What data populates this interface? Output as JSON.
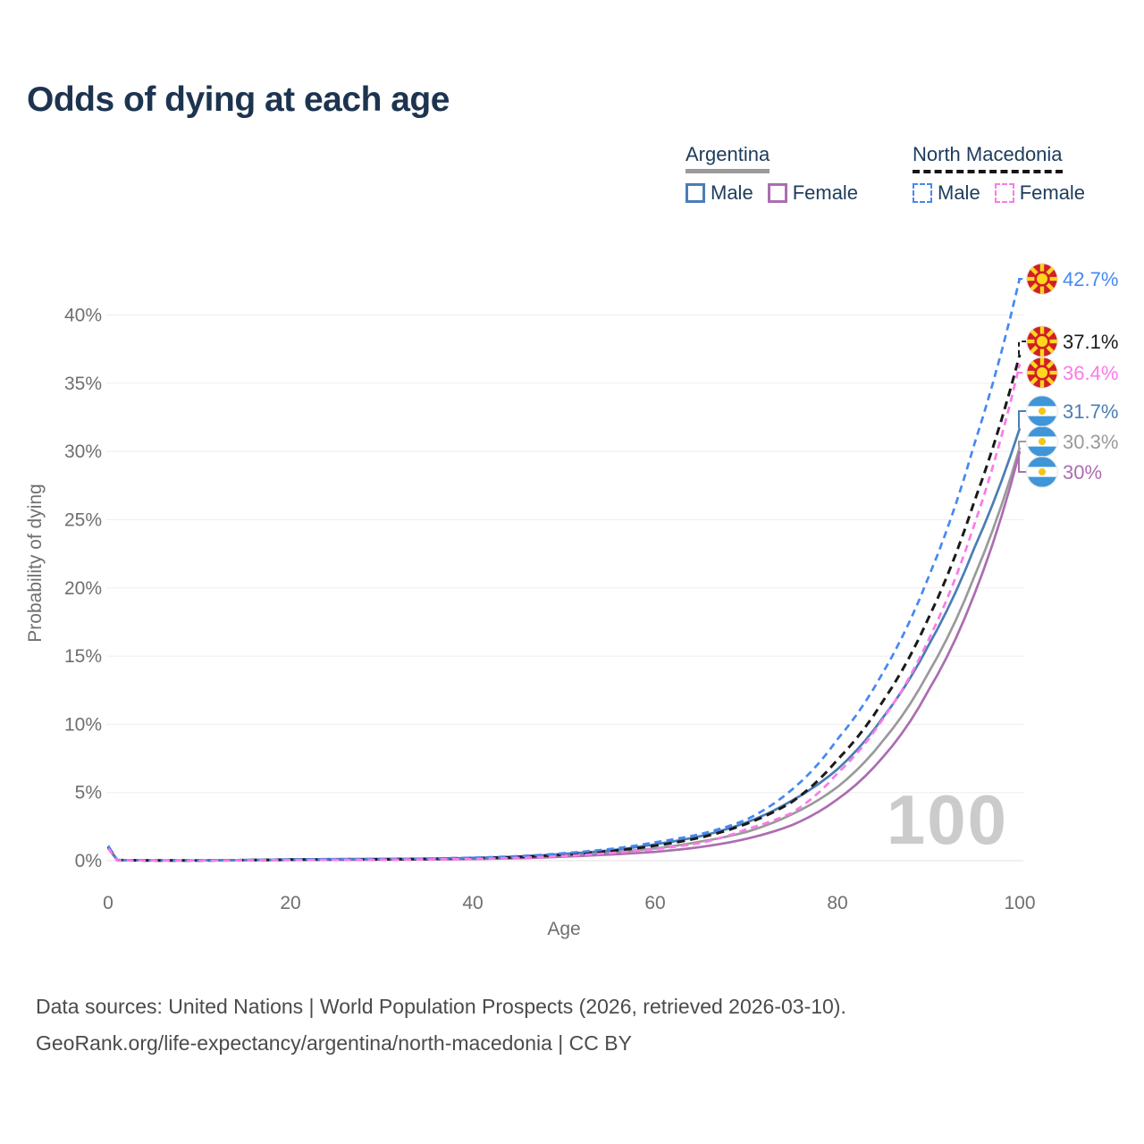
{
  "title": "Odds of dying at each age",
  "legend": {
    "argentina": {
      "title": "Argentina",
      "male_label": "Male",
      "female_label": "Female",
      "male_color": "#4a7db6",
      "female_color": "#ab6db0",
      "underline_color": "#9a9a9a",
      "line_style": "solid"
    },
    "north_macedonia": {
      "title": "North Macedonia",
      "male_label": "Male",
      "female_label": "Female",
      "male_color": "#4688f2",
      "female_color": "#fb7ae8",
      "underline_color": "#151515",
      "line_style": "dashed"
    }
  },
  "footer": {
    "line1": "Data sources: United Nations | World Population Prospects (2026, retrieved 2026-03-10).",
    "line2": "GeoRank.org/life-expectancy/argentina/north-macedonia | CC BY"
  },
  "chart_data": {
    "type": "line",
    "title": "Odds of dying at each age",
    "xlabel": "Age",
    "ylabel": "Probability of dying",
    "watermark": "100",
    "x_ticks": [
      0,
      20,
      40,
      60,
      80,
      100
    ],
    "y_ticks": [
      "0%",
      "5%",
      "10%",
      "15%",
      "20%",
      "25%",
      "30%",
      "35%",
      "40%"
    ],
    "y_tick_values": [
      0,
      5,
      10,
      15,
      20,
      25,
      30,
      35,
      40
    ],
    "xlim": [
      0,
      100
    ],
    "ylim_pct": [
      0,
      43
    ],
    "grid": "horizontal",
    "legend_position": "top-right",
    "ages": [
      0,
      1,
      5,
      10,
      15,
      20,
      25,
      30,
      35,
      40,
      45,
      50,
      55,
      60,
      65,
      70,
      75,
      80,
      85,
      90,
      95,
      100
    ],
    "series": [
      {
        "id": "ar_both",
        "name": "Argentina Both sexes",
        "style": "solid",
        "color": "#9a9a9a",
        "flag": "argentina",
        "end_label": "30.3%",
        "end_value_pct": 30.3,
        "values_pct": [
          0.95,
          0.045,
          0.018,
          0.018,
          0.04,
          0.075,
          0.09,
          0.1,
          0.12,
          0.16,
          0.24,
          0.4,
          0.6,
          0.9,
          1.4,
          2.1,
          3.4,
          5.4,
          8.8,
          13.8,
          20.8,
          30.3
        ]
      },
      {
        "id": "ar_female",
        "name": "Argentina Female",
        "style": "solid",
        "color": "#ab6db0",
        "flag": "argentina",
        "end_label": "30%",
        "end_value_pct": 30.0,
        "values_pct": [
          0.9,
          0.04,
          0.015,
          0.015,
          0.03,
          0.05,
          0.06,
          0.07,
          0.09,
          0.12,
          0.18,
          0.3,
          0.45,
          0.65,
          1.0,
          1.6,
          2.6,
          4.5,
          7.6,
          12.5,
          19.5,
          30.0
        ]
      },
      {
        "id": "ar_male",
        "name": "Argentina Male",
        "style": "solid",
        "color": "#4a7db6",
        "flag": "argentina",
        "end_label": "31.7%",
        "end_value_pct": 31.7,
        "values_pct": [
          1.0,
          0.05,
          0.02,
          0.02,
          0.05,
          0.1,
          0.12,
          0.13,
          0.15,
          0.2,
          0.3,
          0.5,
          0.75,
          1.2,
          1.8,
          2.8,
          4.4,
          6.7,
          10.5,
          15.8,
          22.9,
          31.7
        ]
      },
      {
        "id": "nm_both",
        "name": "North Macedonia Both sexes",
        "style": "dashed",
        "color": "#1a1a1a",
        "flag": "north-macedonia",
        "end_label": "37.1%",
        "end_value_pct": 37.1,
        "values_pct": [
          1.0,
          0.045,
          0.018,
          0.018,
          0.04,
          0.07,
          0.09,
          0.1,
          0.13,
          0.18,
          0.27,
          0.45,
          0.7,
          1.1,
          1.7,
          2.7,
          4.3,
          7.4,
          11.7,
          17.8,
          26.3,
          37.1
        ]
      },
      {
        "id": "nm_male",
        "name": "North Macedonia Male",
        "style": "dashed",
        "color": "#4688f2",
        "flag": "north-macedonia",
        "end_label": "42.7%",
        "end_value_pct": 42.7,
        "values_pct": [
          1.1,
          0.05,
          0.02,
          0.02,
          0.05,
          0.09,
          0.11,
          0.13,
          0.16,
          0.22,
          0.33,
          0.55,
          0.85,
          1.35,
          1.95,
          3.0,
          5.2,
          8.9,
          13.8,
          20.8,
          30.5,
          42.7
        ]
      },
      {
        "id": "nm_female",
        "name": "North Macedonia Female",
        "style": "dashed",
        "color": "#fb7ae8",
        "flag": "north-macedonia",
        "end_label": "36.4%",
        "end_value_pct": 36.4,
        "values_pct": [
          0.9,
          0.04,
          0.015,
          0.015,
          0.03,
          0.05,
          0.06,
          0.07,
          0.09,
          0.13,
          0.2,
          0.35,
          0.55,
          0.85,
          1.3,
          2.3,
          3.5,
          6.4,
          10.4,
          16.2,
          24.6,
          36.4
        ]
      }
    ]
  }
}
